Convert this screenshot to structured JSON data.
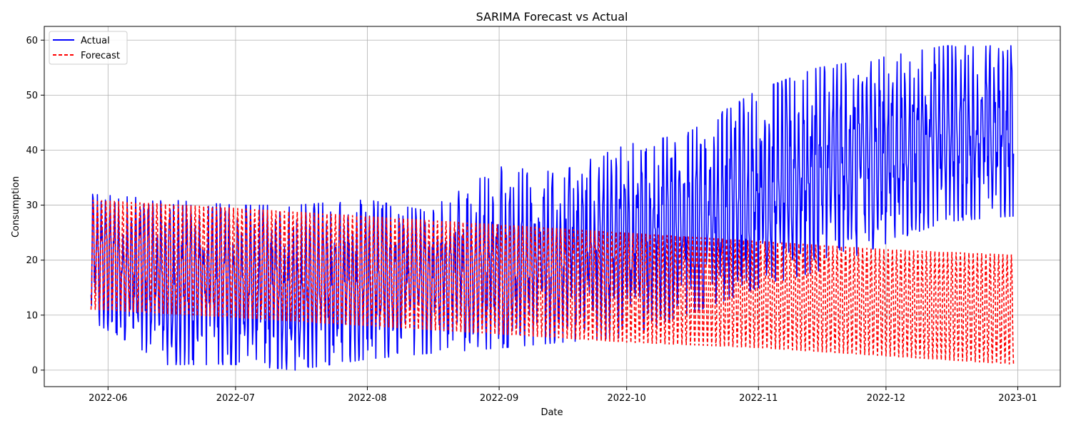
{
  "chart_data": {
    "type": "line",
    "title": "SARIMA Forecast vs Actual",
    "xlabel": "Date",
    "ylabel": "Consumption",
    "x_start": "2022-05-28",
    "x_end": "2022-12-31",
    "xlim": [
      "2022-05-17",
      "2023-01-11"
    ],
    "ylim": [
      -3,
      62.5
    ],
    "x_ticks": [
      "2022-06",
      "2022-07",
      "2022-08",
      "2022-09",
      "2022-10",
      "2022-11",
      "2022-12",
      "2023-01"
    ],
    "y_ticks": [
      0,
      10,
      20,
      30,
      40,
      50,
      60
    ],
    "grid": true,
    "legend_position": "top-left",
    "series": [
      {
        "name": "Actual",
        "color": "#0000ff",
        "style": "solid",
        "summary": {
          "dates": [
            "2022-05-28",
            "2022-06-15",
            "2022-07-01",
            "2022-07-15",
            "2022-08-01",
            "2022-08-15",
            "2022-09-01",
            "2022-09-15",
            "2022-10-01",
            "2022-10-15",
            "2022-11-01",
            "2022-11-15",
            "2022-12-01",
            "2022-12-15",
            "2022-12-31"
          ],
          "low": [
            9,
            1,
            1,
            0,
            2,
            3,
            4,
            5,
            6,
            10,
            15,
            18,
            23,
            27,
            28
          ],
          "high": [
            32,
            31,
            30,
            30,
            31,
            29,
            37,
            36,
            41,
            43,
            51,
            55,
            57,
            59,
            59
          ]
        }
      },
      {
        "name": "Forecast",
        "color": "#ff0000",
        "style": "dashed",
        "summary": {
          "dates": [
            "2022-05-28",
            "2022-07-01",
            "2022-08-01",
            "2022-09-01",
            "2022-10-01",
            "2022-11-01",
            "2022-12-01",
            "2022-12-31"
          ],
          "low": [
            11,
            9.5,
            8,
            6.5,
            5,
            4,
            2.5,
            1
          ],
          "high": [
            31,
            29.5,
            28,
            26.5,
            25,
            23.5,
            22,
            21
          ]
        }
      }
    ]
  }
}
